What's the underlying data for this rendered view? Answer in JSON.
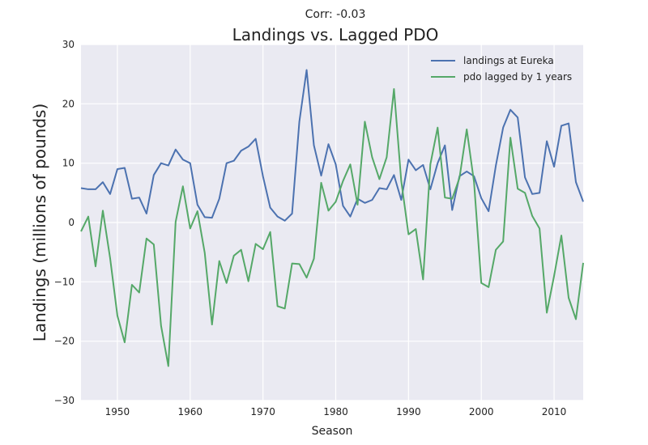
{
  "chart_data": {
    "type": "line",
    "subtitle": "Corr: -0.03",
    "title": "Landings vs. Lagged PDO",
    "xlabel": "Season",
    "ylabel": "Landings (millions of pounds)",
    "xlim": [
      1945,
      2014
    ],
    "ylim": [
      -30,
      30
    ],
    "x_ticks": [
      1950,
      1960,
      1970,
      1980,
      1990,
      2000,
      2010
    ],
    "y_ticks": [
      -30,
      -20,
      -10,
      0,
      10,
      20,
      30
    ],
    "x_tick_labels": [
      "1950",
      "1960",
      "1970",
      "1980",
      "1990",
      "2000",
      "2010"
    ],
    "y_tick_labels": [
      "−30",
      "−20",
      "−10",
      "0",
      "10",
      "20",
      "30"
    ],
    "grid": true,
    "legend_position": "top-right",
    "x": [
      1945,
      1946,
      1947,
      1948,
      1949,
      1950,
      1951,
      1952,
      1953,
      1954,
      1955,
      1956,
      1957,
      1958,
      1959,
      1960,
      1961,
      1962,
      1963,
      1964,
      1965,
      1966,
      1967,
      1968,
      1969,
      1970,
      1971,
      1972,
      1973,
      1974,
      1975,
      1976,
      1977,
      1978,
      1979,
      1980,
      1981,
      1982,
      1983,
      1984,
      1985,
      1986,
      1987,
      1988,
      1989,
      1990,
      1991,
      1992,
      1993,
      1994,
      1995,
      1996,
      1997,
      1998,
      1999,
      2000,
      2001,
      2002,
      2003,
      2004,
      2005,
      2006,
      2007,
      2008,
      2009,
      2010,
      2011,
      2012,
      2013,
      2014
    ],
    "series": [
      {
        "name": "landings at Eureka",
        "color": "#4c72b0",
        "values": [
          5.8,
          5.6,
          5.6,
          6.8,
          4.8,
          9.0,
          9.2,
          4.0,
          4.2,
          1.5,
          8.0,
          10.0,
          9.6,
          12.3,
          10.6,
          10.0,
          3.0,
          0.9,
          0.8,
          4.0,
          10.0,
          10.4,
          12.1,
          12.8,
          14.1,
          7.8,
          2.5,
          1.0,
          0.3,
          1.5,
          17.0,
          25.7,
          13.0,
          7.9,
          13.2,
          9.8,
          2.8,
          1.0,
          4.0,
          3.3,
          3.8,
          5.8,
          5.6,
          8.0,
          3.8,
          10.6,
          8.8,
          9.7,
          5.6,
          10.0,
          13.0,
          2.1,
          7.8,
          8.6,
          7.8,
          4.1,
          1.9,
          9.6,
          16.0,
          19.0,
          17.7,
          7.6,
          4.8,
          5.0,
          13.7,
          9.4,
          16.3,
          16.7,
          6.8,
          3.5
        ]
      },
      {
        "name": "pdo lagged by 1 years",
        "color": "#55a868",
        "values": [
          -1.5,
          1.0,
          -7.4,
          2.0,
          -6.0,
          -15.7,
          -20.2,
          -10.5,
          -11.8,
          -2.7,
          -3.7,
          -17.4,
          -24.2,
          0.1,
          6.1,
          -1.0,
          1.9,
          -5.1,
          -17.2,
          -6.5,
          -10.2,
          -5.6,
          -4.6,
          -9.9,
          -3.6,
          -4.5,
          -1.6,
          -14.1,
          -14.5,
          -6.9,
          -7.0,
          -9.3,
          -6.1,
          6.7,
          2.0,
          3.5,
          7.0,
          9.8,
          3.0,
          17.0,
          11.0,
          7.3,
          11.0,
          22.5,
          7.0,
          -2.0,
          -1.1,
          -9.6,
          9.8,
          16.0,
          4.2,
          4.0,
          7.5,
          15.7,
          6.8,
          -10.2,
          -10.9,
          -4.6,
          -3.2,
          14.3,
          5.7,
          5.0,
          1.1,
          -1.0,
          -15.2,
          -9.0,
          -2.2,
          -12.7,
          -16.3,
          -6.8
        ]
      }
    ]
  }
}
